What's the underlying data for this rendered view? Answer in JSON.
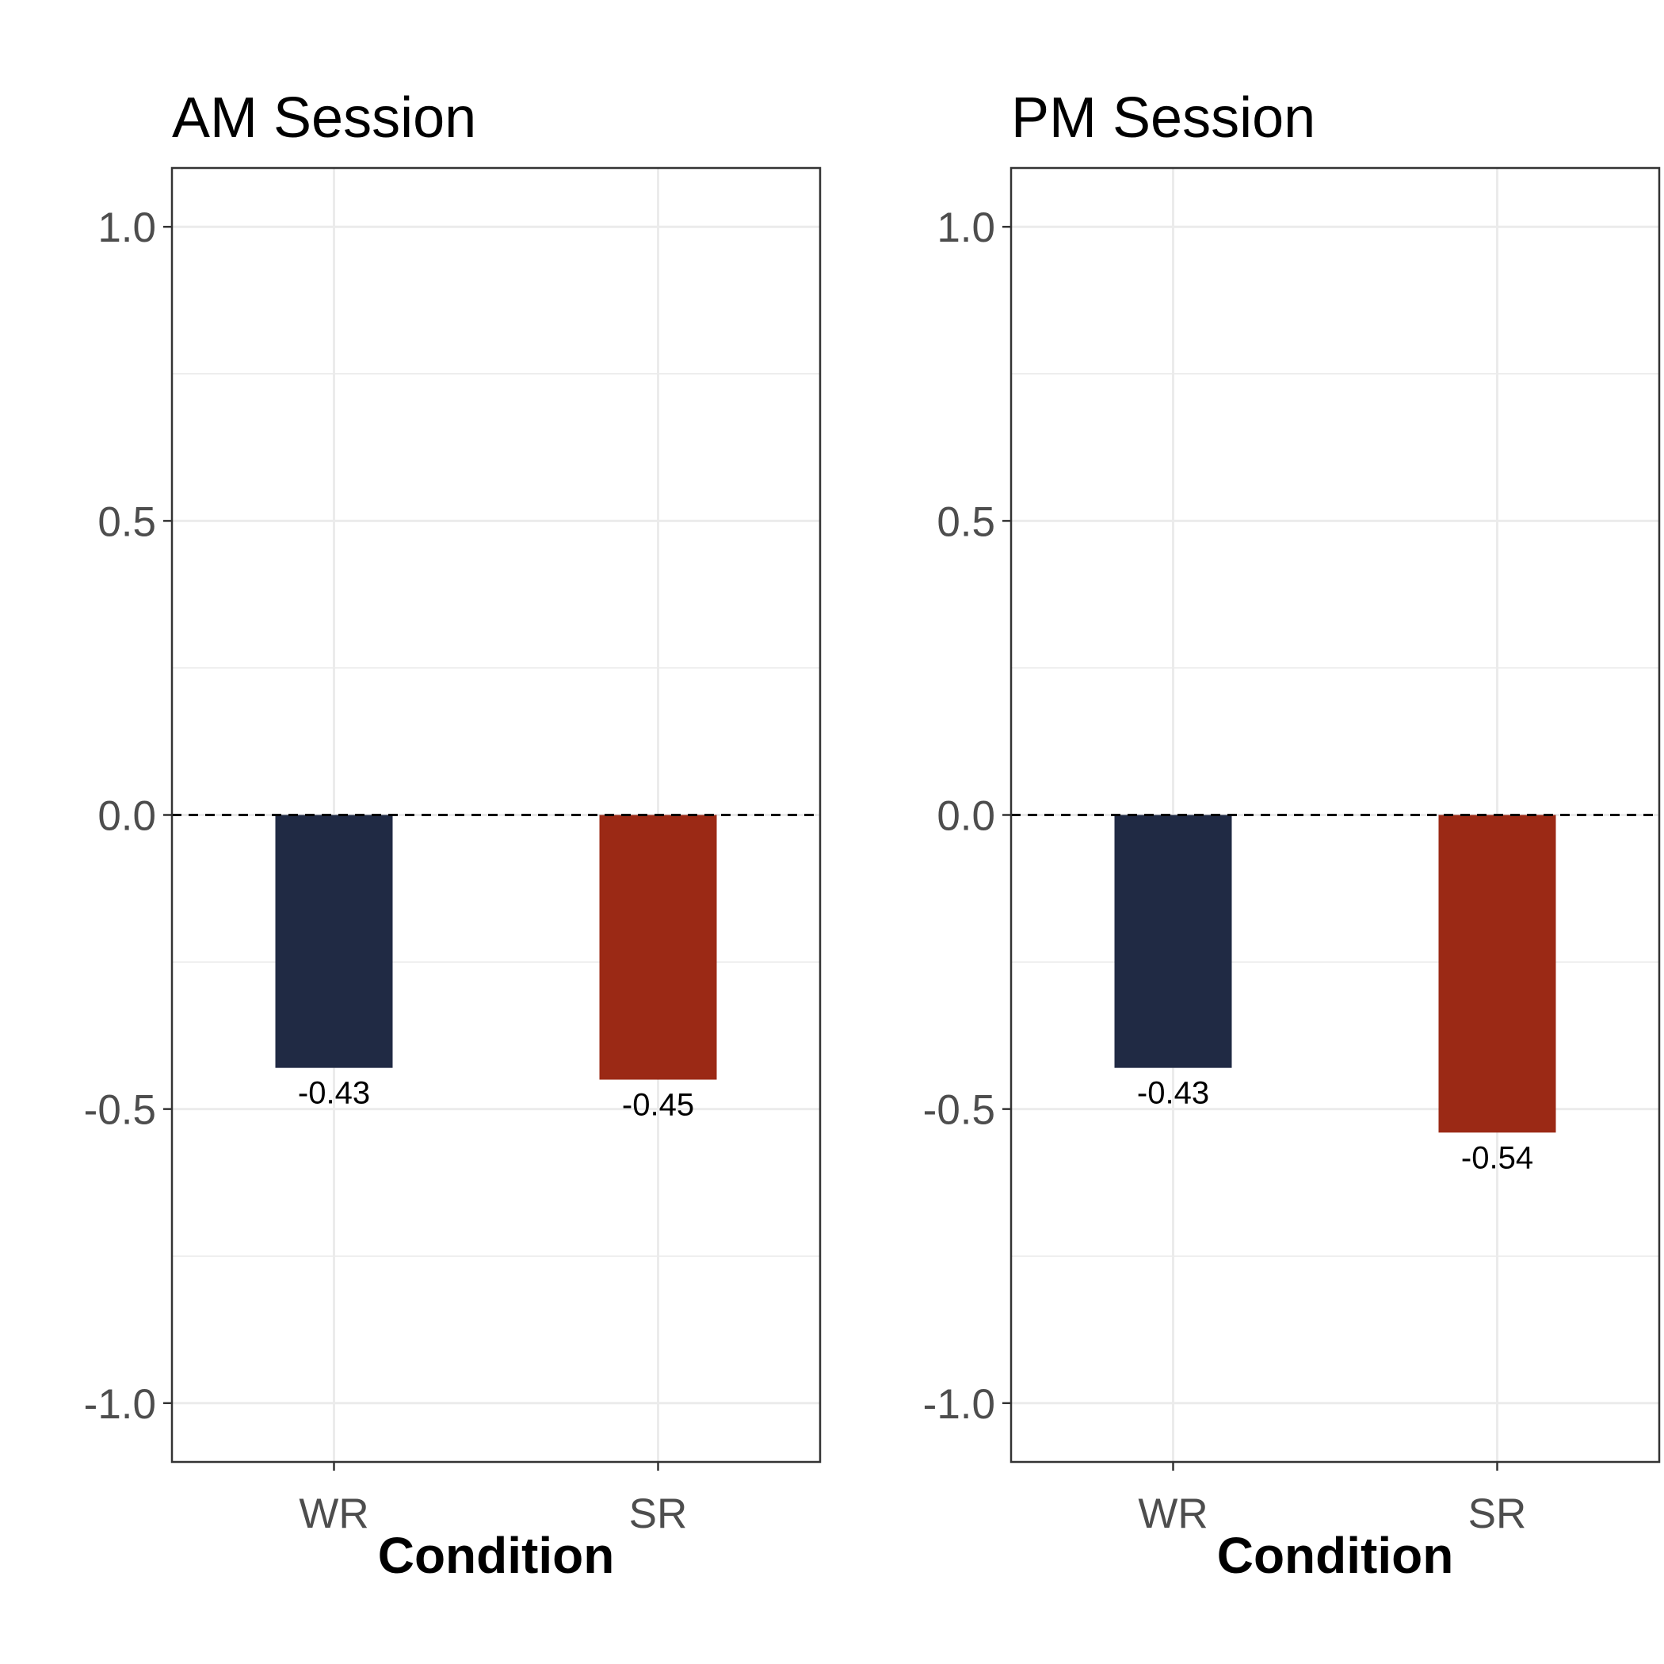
{
  "chart_data": [
    {
      "type": "bar",
      "title": "AM Session",
      "xlabel": "Condition",
      "ylabel": "",
      "categories": [
        "WR",
        "SR"
      ],
      "values": [
        -0.43,
        -0.45
      ],
      "value_labels": [
        "-0.43",
        "-0.45"
      ],
      "colors": [
        "#202a44",
        "#9b2915"
      ],
      "ylim": [
        -1.1,
        1.1
      ],
      "yticks": [
        -1.0,
        -0.5,
        0.0,
        0.5,
        1.0
      ],
      "ytick_labels": [
        "-1.0",
        "-0.5",
        "0.0",
        "0.5",
        "1.0"
      ],
      "reference_line": {
        "y": 0,
        "style": "dashed"
      },
      "grid": true,
      "legend": "none"
    },
    {
      "type": "bar",
      "title": "PM Session",
      "xlabel": "Condition",
      "ylabel": "",
      "categories": [
        "WR",
        "SR"
      ],
      "values": [
        -0.43,
        -0.54
      ],
      "value_labels": [
        "-0.43",
        "-0.54"
      ],
      "colors": [
        "#202a44",
        "#9b2915"
      ],
      "ylim": [
        -1.1,
        1.1
      ],
      "yticks": [
        -1.0,
        -0.5,
        0.0,
        0.5,
        1.0
      ],
      "ytick_labels": [
        "-1.0",
        "-0.5",
        "0.0",
        "0.5",
        "1.0"
      ],
      "reference_line": {
        "y": 0,
        "style": "dashed"
      },
      "grid": true,
      "legend": "none"
    }
  ]
}
